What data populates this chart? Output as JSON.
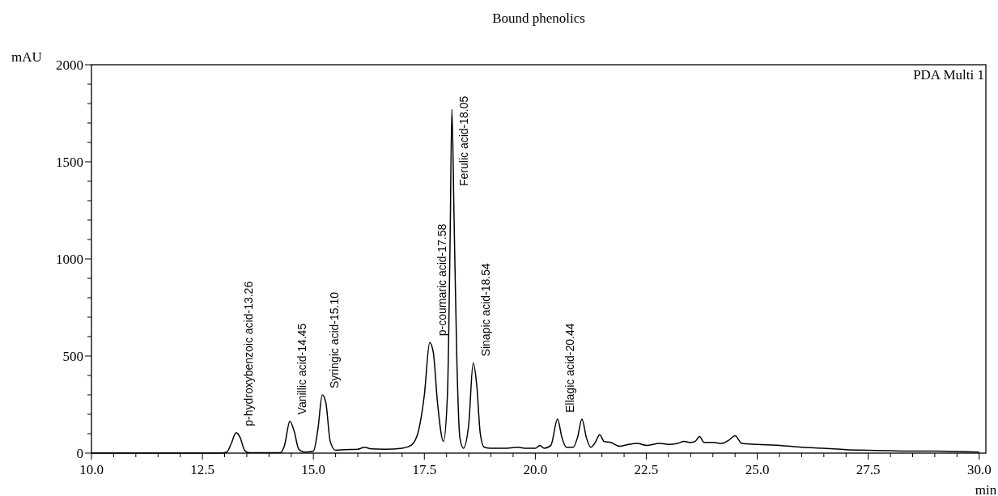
{
  "chart_data": {
    "type": "line",
    "title": "Bound phenolics",
    "xlabel": "min",
    "ylabel": "mAU",
    "annotations": [
      {
        "text": "p-hydroxybenzoic acid-13.26",
        "x": 13.26,
        "y": 105
      },
      {
        "text": "Vanillic acid-14.45",
        "x": 14.47,
        "y": 165
      },
      {
        "text": "Syringic acid-15.10",
        "x": 15.2,
        "y": 300
      },
      {
        "text": "p-coumaric acid-17.58",
        "x": 17.62,
        "y": 570
      },
      {
        "text": "Ferulic acid-18.05",
        "x": 18.12,
        "y": 1770
      },
      {
        "text": "Sinapic acid-18.54",
        "x": 18.6,
        "y": 465
      },
      {
        "text": "Ellagic acid-20.44",
        "x": 20.5,
        "y": 175
      },
      "PDA Multi 1"
    ],
    "xlim": [
      10,
      30.15
    ],
    "ylim": [
      0,
      2000
    ],
    "xticks": [
      {
        "value": 10,
        "label": "10.0"
      },
      {
        "value": 10.5,
        "label": null
      },
      {
        "value": 11,
        "label": null
      },
      {
        "value": 11.5,
        "label": null
      },
      {
        "value": 12,
        "label": null
      },
      {
        "value": 12.5,
        "label": "12.5"
      },
      {
        "value": 13,
        "label": null
      },
      {
        "value": 13.5,
        "label": null
      },
      {
        "value": 14,
        "label": null
      },
      {
        "value": 14.5,
        "label": null
      },
      {
        "value": 15,
        "label": "15.0"
      },
      {
        "value": 15.5,
        "label": null
      },
      {
        "value": 16,
        "label": null
      },
      {
        "value": 16.5,
        "label": null
      },
      {
        "value": 17,
        "label": null
      },
      {
        "value": 17.5,
        "label": "17.5"
      },
      {
        "value": 18,
        "label": null
      },
      {
        "value": 18.5,
        "label": null
      },
      {
        "value": 19,
        "label": null
      },
      {
        "value": 19.5,
        "label": null
      },
      {
        "value": 20,
        "label": "20.0"
      },
      {
        "value": 20.5,
        "label": null
      },
      {
        "value": 21,
        "label": null
      },
      {
        "value": 21.5,
        "label": null
      },
      {
        "value": 22,
        "label": null
      },
      {
        "value": 22.5,
        "label": "22.5"
      },
      {
        "value": 23,
        "label": null
      },
      {
        "value": 23.5,
        "label": null
      },
      {
        "value": 24,
        "label": null
      },
      {
        "value": 24.5,
        "label": null
      },
      {
        "value": 25,
        "label": "25.0"
      },
      {
        "value": 25.5,
        "label": null
      },
      {
        "value": 26,
        "label": null
      },
      {
        "value": 26.5,
        "label": null
      },
      {
        "value": 27,
        "label": null
      },
      {
        "value": 27.5,
        "label": "27.5"
      },
      {
        "value": 28,
        "label": null
      },
      {
        "value": 28.5,
        "label": null
      },
      {
        "value": 29,
        "label": null
      },
      {
        "value": 29.5,
        "label": null
      },
      {
        "value": 30,
        "label": "30.0"
      }
    ],
    "yticks": [
      0,
      {
        "value": 100,
        "label": null
      },
      {
        "value": 200,
        "label": null
      },
      {
        "value": 300,
        "label": null
      },
      {
        "value": 400,
        "label": null
      },
      500,
      {
        "value": 600,
        "label": null
      },
      {
        "value": 700,
        "label": null
      },
      {
        "value": 800,
        "label": null
      },
      {
        "value": 900,
        "label": null
      },
      1000,
      {
        "value": 1100,
        "label": null
      },
      {
        "value": 1200,
        "label": null
      },
      {
        "value": 1300,
        "label": null
      },
      {
        "value": 1400,
        "label": null
      },
      1500,
      {
        "value": 1600,
        "label": null
      },
      {
        "value": 1700,
        "label": null
      },
      {
        "value": 1800,
        "label": null
      },
      {
        "value": 1900,
        "label": null
      },
      2000
    ],
    "grid": false,
    "marker": "none",
    "line_style": "solid",
    "series": [
      {
        "color": "#000000",
        "x": [
          10.0,
          12.9,
          13.05,
          13.15,
          13.26,
          13.35,
          13.45,
          13.55,
          14.25,
          14.35,
          14.47,
          14.57,
          14.67,
          14.8,
          15.0,
          15.1,
          15.2,
          15.28,
          15.38,
          15.5,
          15.7,
          16.0,
          16.15,
          16.3,
          16.6,
          17.0,
          17.2,
          17.35,
          17.5,
          17.62,
          17.7,
          17.8,
          17.93,
          18.02,
          18.08,
          18.12,
          18.17,
          18.23,
          18.3,
          18.38,
          18.5,
          18.6,
          18.68,
          18.76,
          18.85,
          19.0,
          19.3,
          19.6,
          19.8,
          20.0,
          20.1,
          20.2,
          20.35,
          20.5,
          20.6,
          20.7,
          20.85,
          20.95,
          21.05,
          21.15,
          21.25,
          21.35,
          21.45,
          21.55,
          21.7,
          21.9,
          22.1,
          22.3,
          22.5,
          22.8,
          23.0,
          23.2,
          23.35,
          23.5,
          23.6,
          23.7,
          23.8,
          24.0,
          24.2,
          24.35,
          24.5,
          24.65,
          25.0,
          25.5,
          26.0,
          26.5,
          27.0,
          27.5,
          28.0,
          28.5,
          29.0,
          29.5,
          30.0
        ],
        "values": [
          0,
          0,
          5,
          50,
          105,
          80,
          15,
          2,
          2,
          40,
          165,
          110,
          20,
          5,
          10,
          120,
          300,
          260,
          60,
          15,
          18,
          20,
          30,
          22,
          20,
          25,
          40,
          100,
          300,
          570,
          520,
          250,
          60,
          300,
          1100,
          1770,
          1200,
          500,
          80,
          25,
          150,
          465,
          350,
          100,
          30,
          25,
          25,
          30,
          25,
          25,
          40,
          25,
          40,
          175,
          80,
          30,
          30,
          80,
          175,
          80,
          30,
          55,
          95,
          60,
          55,
          35,
          45,
          50,
          40,
          50,
          45,
          50,
          60,
          55,
          60,
          85,
          55,
          55,
          50,
          65,
          90,
          50,
          45,
          40,
          30,
          25,
          18,
          15,
          12,
          10,
          10,
          8,
          5
        ]
      }
    ]
  }
}
